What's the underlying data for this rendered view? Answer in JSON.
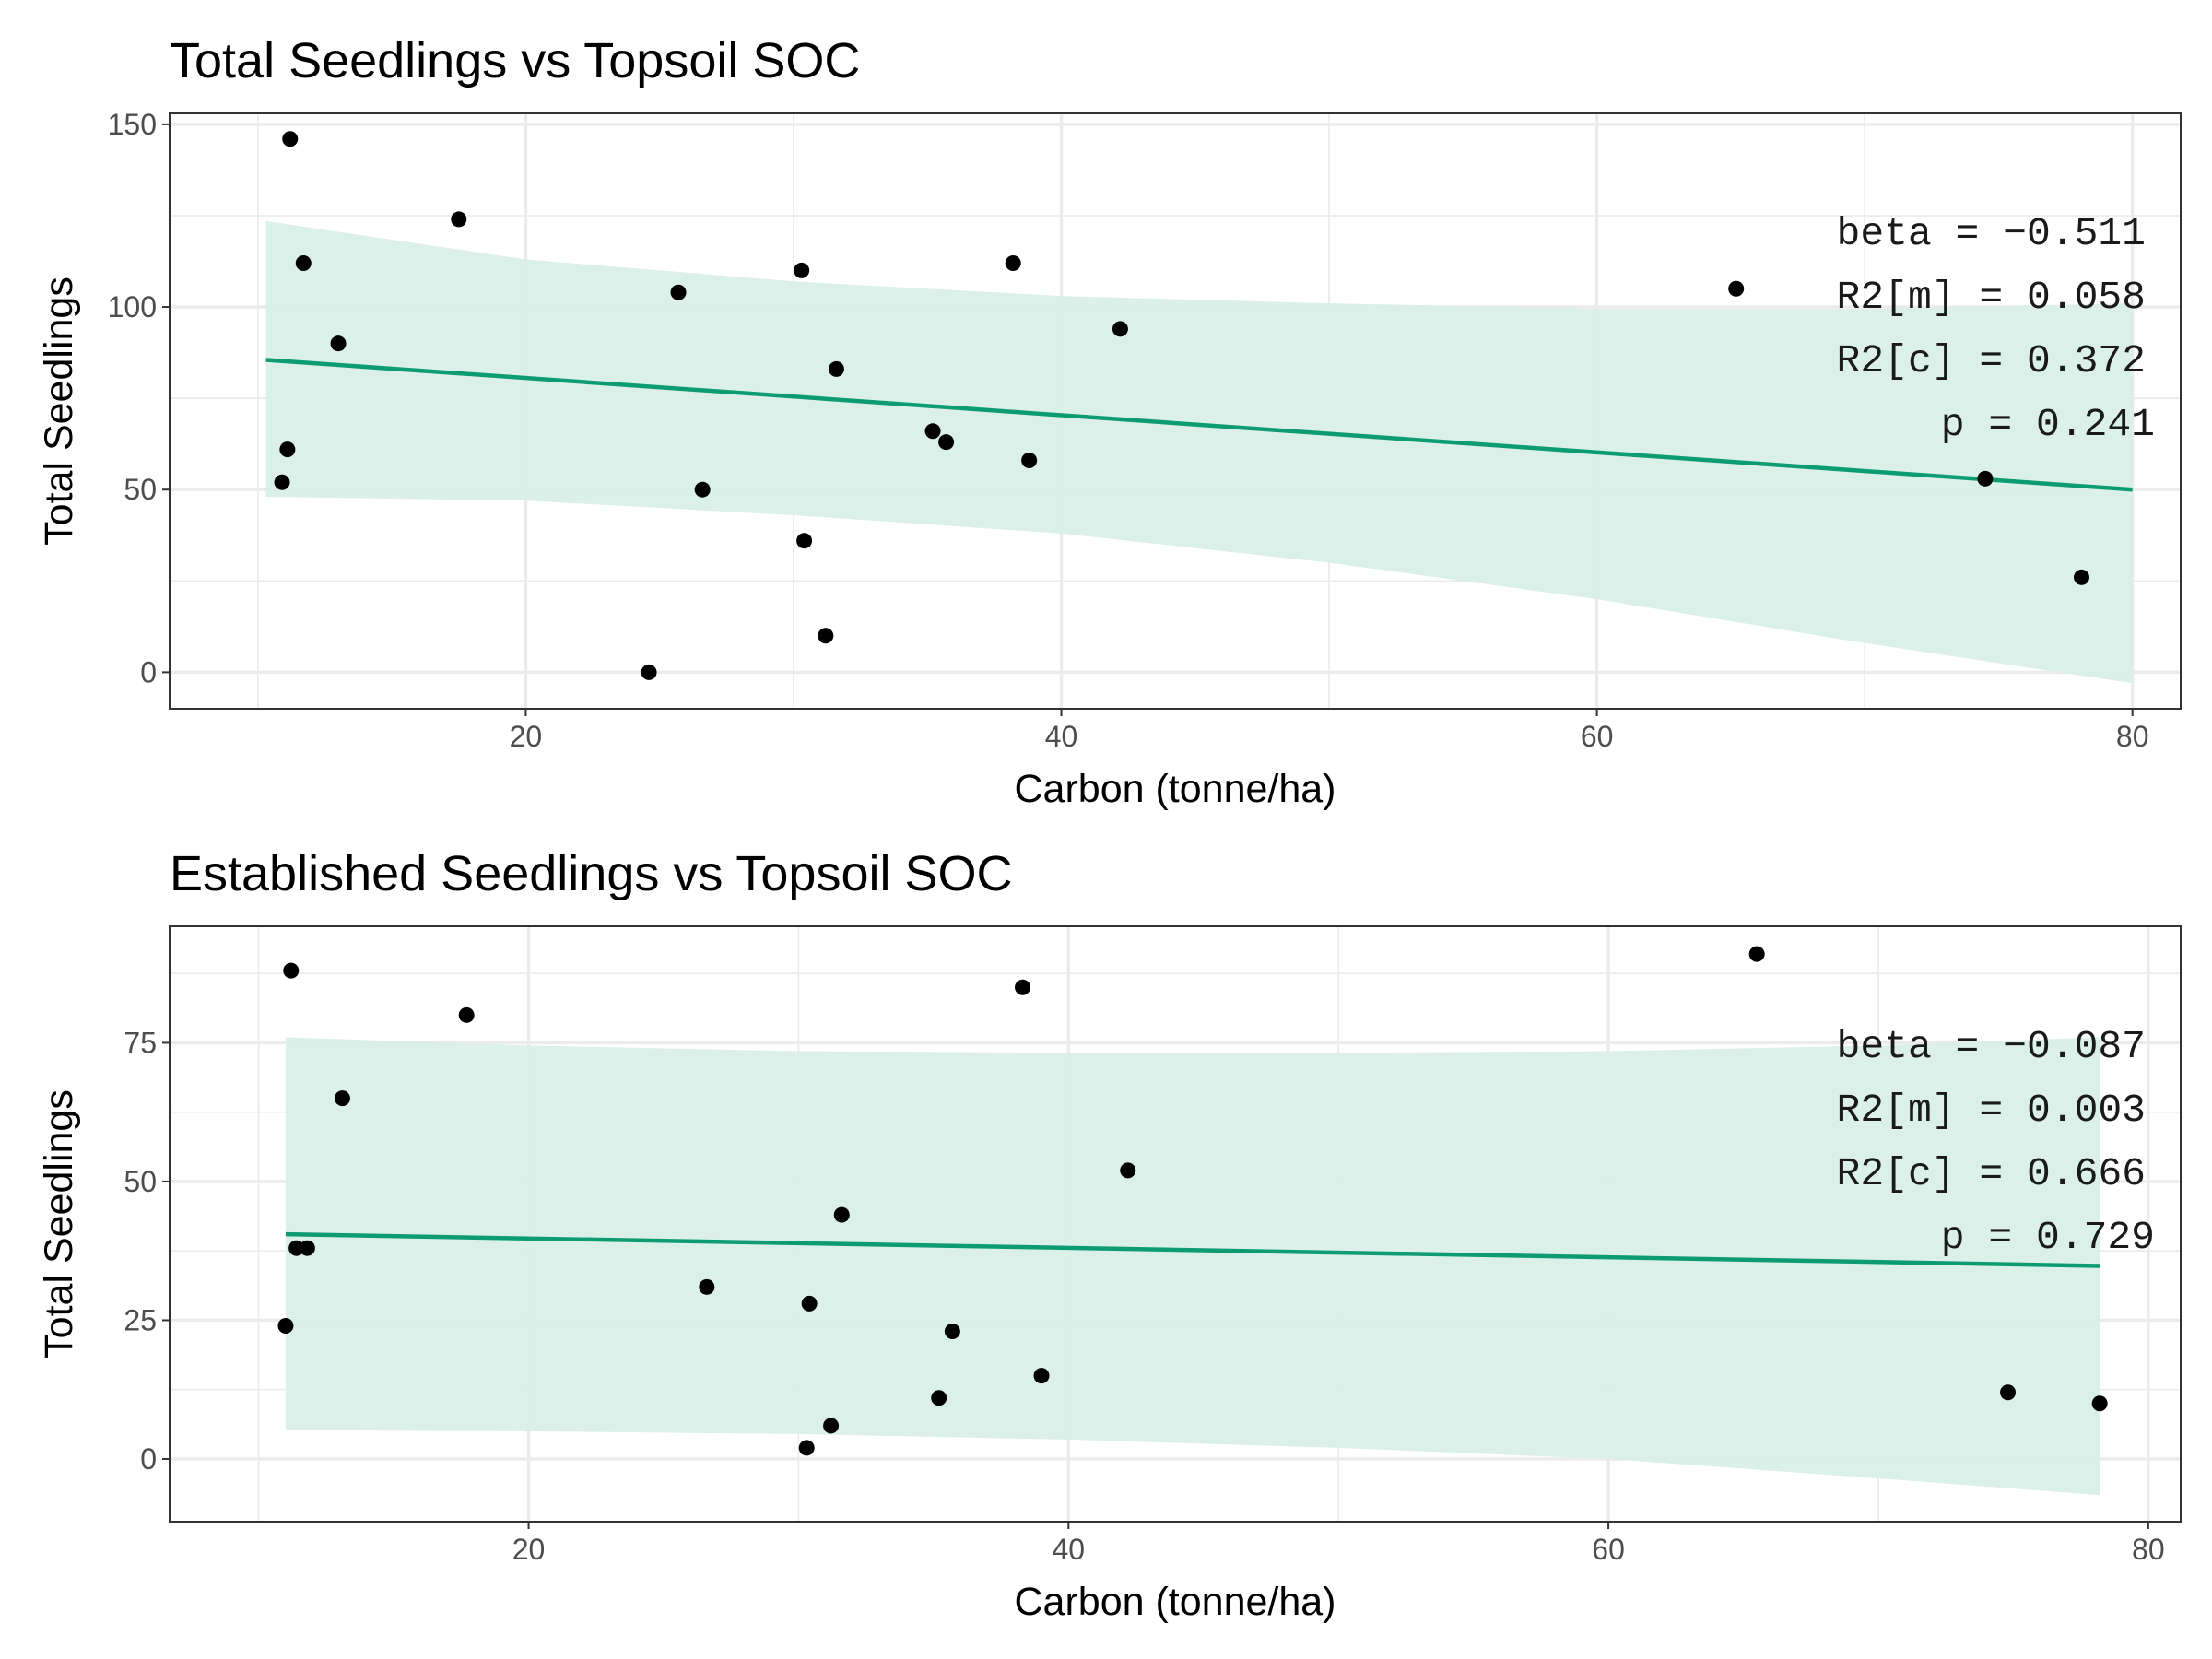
{
  "colors": {
    "fit_line": "#0d9b72",
    "ci_band": "#d8efe7",
    "points": "#000000"
  },
  "chart_data": [
    {
      "type": "scatter",
      "title": "Total Seedlings vs Topsoil SOC",
      "xlabel": "Carbon (tonne/ha)",
      "ylabel": "Total Seedlings",
      "xlim": [
        6.7,
        81.8
      ],
      "ylim": [
        -10,
        153
      ],
      "xticks": [
        20,
        40,
        60,
        80
      ],
      "yticks": [
        0,
        50,
        100,
        150
      ],
      "grid": true,
      "points": [
        {
          "x": 11.2,
          "y": 146
        },
        {
          "x": 11.7,
          "y": 112
        },
        {
          "x": 11.1,
          "y": 61
        },
        {
          "x": 10.9,
          "y": 52
        },
        {
          "x": 13.0,
          "y": 90
        },
        {
          "x": 17.5,
          "y": 124
        },
        {
          "x": 24.6,
          "y": 0
        },
        {
          "x": 25.7,
          "y": 104
        },
        {
          "x": 26.6,
          "y": 50
        },
        {
          "x": 30.3,
          "y": 110
        },
        {
          "x": 30.4,
          "y": 36
        },
        {
          "x": 31.2,
          "y": 10
        },
        {
          "x": 31.6,
          "y": 83
        },
        {
          "x": 35.2,
          "y": 66
        },
        {
          "x": 35.7,
          "y": 63
        },
        {
          "x": 38.2,
          "y": 112
        },
        {
          "x": 38.8,
          "y": 58
        },
        {
          "x": 42.2,
          "y": 94
        },
        {
          "x": 65.2,
          "y": 105
        },
        {
          "x": 74.5,
          "y": 53
        },
        {
          "x": 78.1,
          "y": 26
        }
      ],
      "fit": {
        "x": [
          10.3,
          80.0
        ],
        "y": [
          85.5,
          50.0
        ]
      },
      "ci_band": {
        "x": [
          10.3,
          20,
          30,
          40,
          50,
          60,
          70,
          80
        ],
        "lower": [
          48,
          47,
          43,
          38,
          30,
          20,
          8,
          -3
        ],
        "upper": [
          123.5,
          113,
          107,
          103,
          101,
          99.5,
          99.5,
          101
        ]
      },
      "annotations": [
        "beta = −0.511",
        "R2[m] = 0.058",
        "R2[c] = 0.372",
        "p = 0.241"
      ]
    },
    {
      "type": "scatter",
      "title": "Established Seedlings vs Topsoil SOC",
      "xlabel": "Carbon (tonne/ha)",
      "ylabel": "Total Seedlings",
      "xlim": [
        6.7,
        81.2
      ],
      "ylim": [
        -11.3,
        96
      ],
      "xticks": [
        20,
        40,
        60,
        80
      ],
      "yticks": [
        0,
        25,
        50,
        75
      ],
      "grid": true,
      "points": [
        {
          "x": 11.2,
          "y": 88
        },
        {
          "x": 11.4,
          "y": 38
        },
        {
          "x": 11.8,
          "y": 38
        },
        {
          "x": 11.0,
          "y": 24
        },
        {
          "x": 13.1,
          "y": 65
        },
        {
          "x": 17.7,
          "y": 80
        },
        {
          "x": 26.6,
          "y": 31
        },
        {
          "x": 30.4,
          "y": 28
        },
        {
          "x": 30.3,
          "y": 2
        },
        {
          "x": 31.2,
          "y": 6
        },
        {
          "x": 31.6,
          "y": 44
        },
        {
          "x": 35.2,
          "y": 11
        },
        {
          "x": 35.7,
          "y": 23
        },
        {
          "x": 38.3,
          "y": 85
        },
        {
          "x": 39.0,
          "y": 15
        },
        {
          "x": 42.2,
          "y": 52
        },
        {
          "x": 65.5,
          "y": 91
        },
        {
          "x": 74.8,
          "y": 12
        },
        {
          "x": 78.2,
          "y": 10
        }
      ],
      "fit": {
        "x": [
          11.0,
          78.2
        ],
        "y": [
          40.5,
          34.8
        ]
      },
      "ci_band": {
        "x": [
          11.0,
          20,
          30,
          40,
          50,
          60,
          70,
          78.2
        ],
        "lower": [
          5.2,
          5.0,
          4.5,
          3.5,
          2,
          0,
          -3.5,
          -6.5
        ],
        "upper": [
          76,
          74.5,
          73.5,
          73.2,
          73.2,
          73.5,
          74.5,
          76
        ]
      },
      "annotations": [
        "beta = −0.087",
        "R2[m] = 0.003",
        "R2[c] = 0.666",
        "p = 0.729"
      ]
    }
  ]
}
